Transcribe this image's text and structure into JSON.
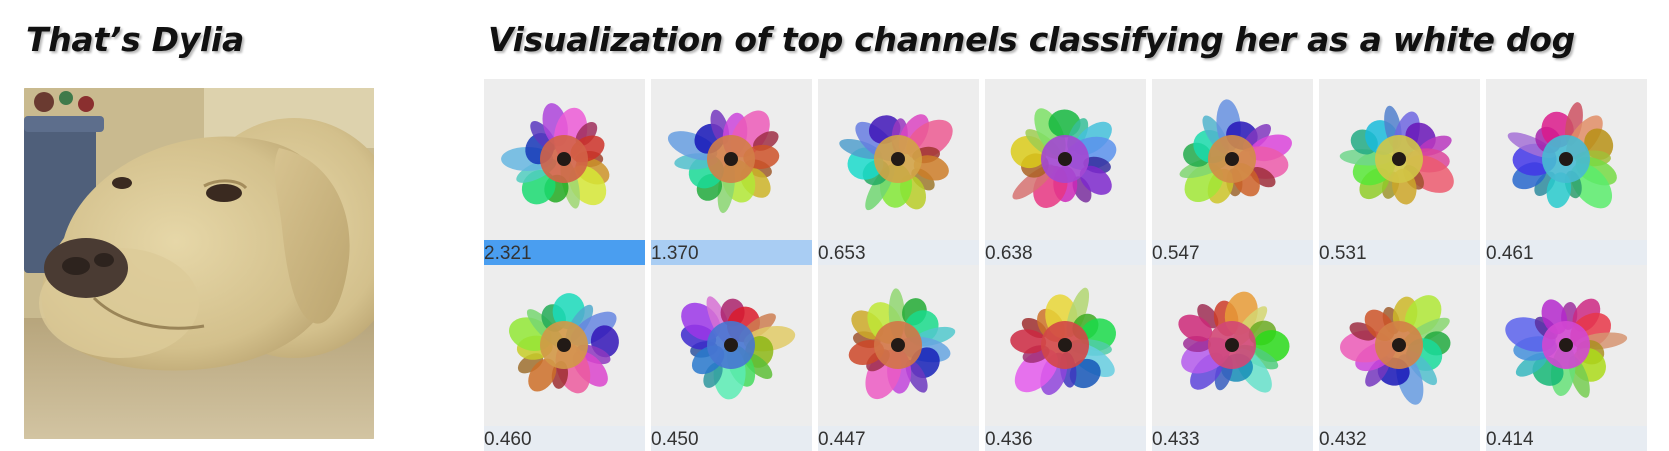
{
  "titles": {
    "left": "That’s Dylia",
    "right": "Visualization of top channels classifying her as a white dog"
  },
  "photo": {
    "subject": "yellow-labrador-photo"
  },
  "colors": {
    "bar_strong": "#4a9ef0",
    "bar_light": "#a9cdf3",
    "bar_background": "#e7ecf2"
  },
  "channels": [
    {
      "score": "2.321",
      "value": 2.321,
      "hue": 12,
      "label_icon": "spiral-feature-icon"
    },
    {
      "score": "1.370",
      "value": 1.37,
      "hue": 24,
      "label_icon": "dog-ear-feature-icon"
    },
    {
      "score": "0.653",
      "value": 0.653,
      "hue": 40,
      "label_icon": "dog-snout-feature-icon"
    },
    {
      "score": "0.638",
      "value": 0.638,
      "hue": 280,
      "label_icon": "badger-face-feature-icon"
    },
    {
      "score": "0.547",
      "value": 0.547,
      "hue": 30,
      "label_icon": "dog-face-feature-icon"
    },
    {
      "score": "0.531",
      "value": 0.531,
      "hue": 55,
      "label_icon": "round-fur-feature-icon"
    },
    {
      "score": "0.461",
      "value": 0.461,
      "hue": 190,
      "label_icon": "terrier-face-feature-icon"
    },
    {
      "score": "0.460",
      "value": 0.46,
      "hue": 35,
      "label_icon": "fox-face-feature-icon"
    },
    {
      "score": "0.450",
      "value": 0.45,
      "hue": 220,
      "label_icon": "machine-pattern-feature-icon"
    },
    {
      "score": "0.447",
      "value": 0.447,
      "hue": 20,
      "label_icon": "bear-face-feature-icon"
    },
    {
      "score": "0.436",
      "value": 0.436,
      "hue": 0,
      "label_icon": "cone-feature-icon"
    },
    {
      "score": "0.433",
      "value": 0.433,
      "hue": 340,
      "label_icon": "pink-muzzle-feature-icon"
    },
    {
      "score": "0.432",
      "value": 0.432,
      "hue": 25,
      "label_icon": "fluffy-dog-feature-icon"
    },
    {
      "score": "0.414",
      "value": 0.414,
      "hue": 300,
      "label_icon": "ghostly-dog-feature-icon"
    }
  ]
}
